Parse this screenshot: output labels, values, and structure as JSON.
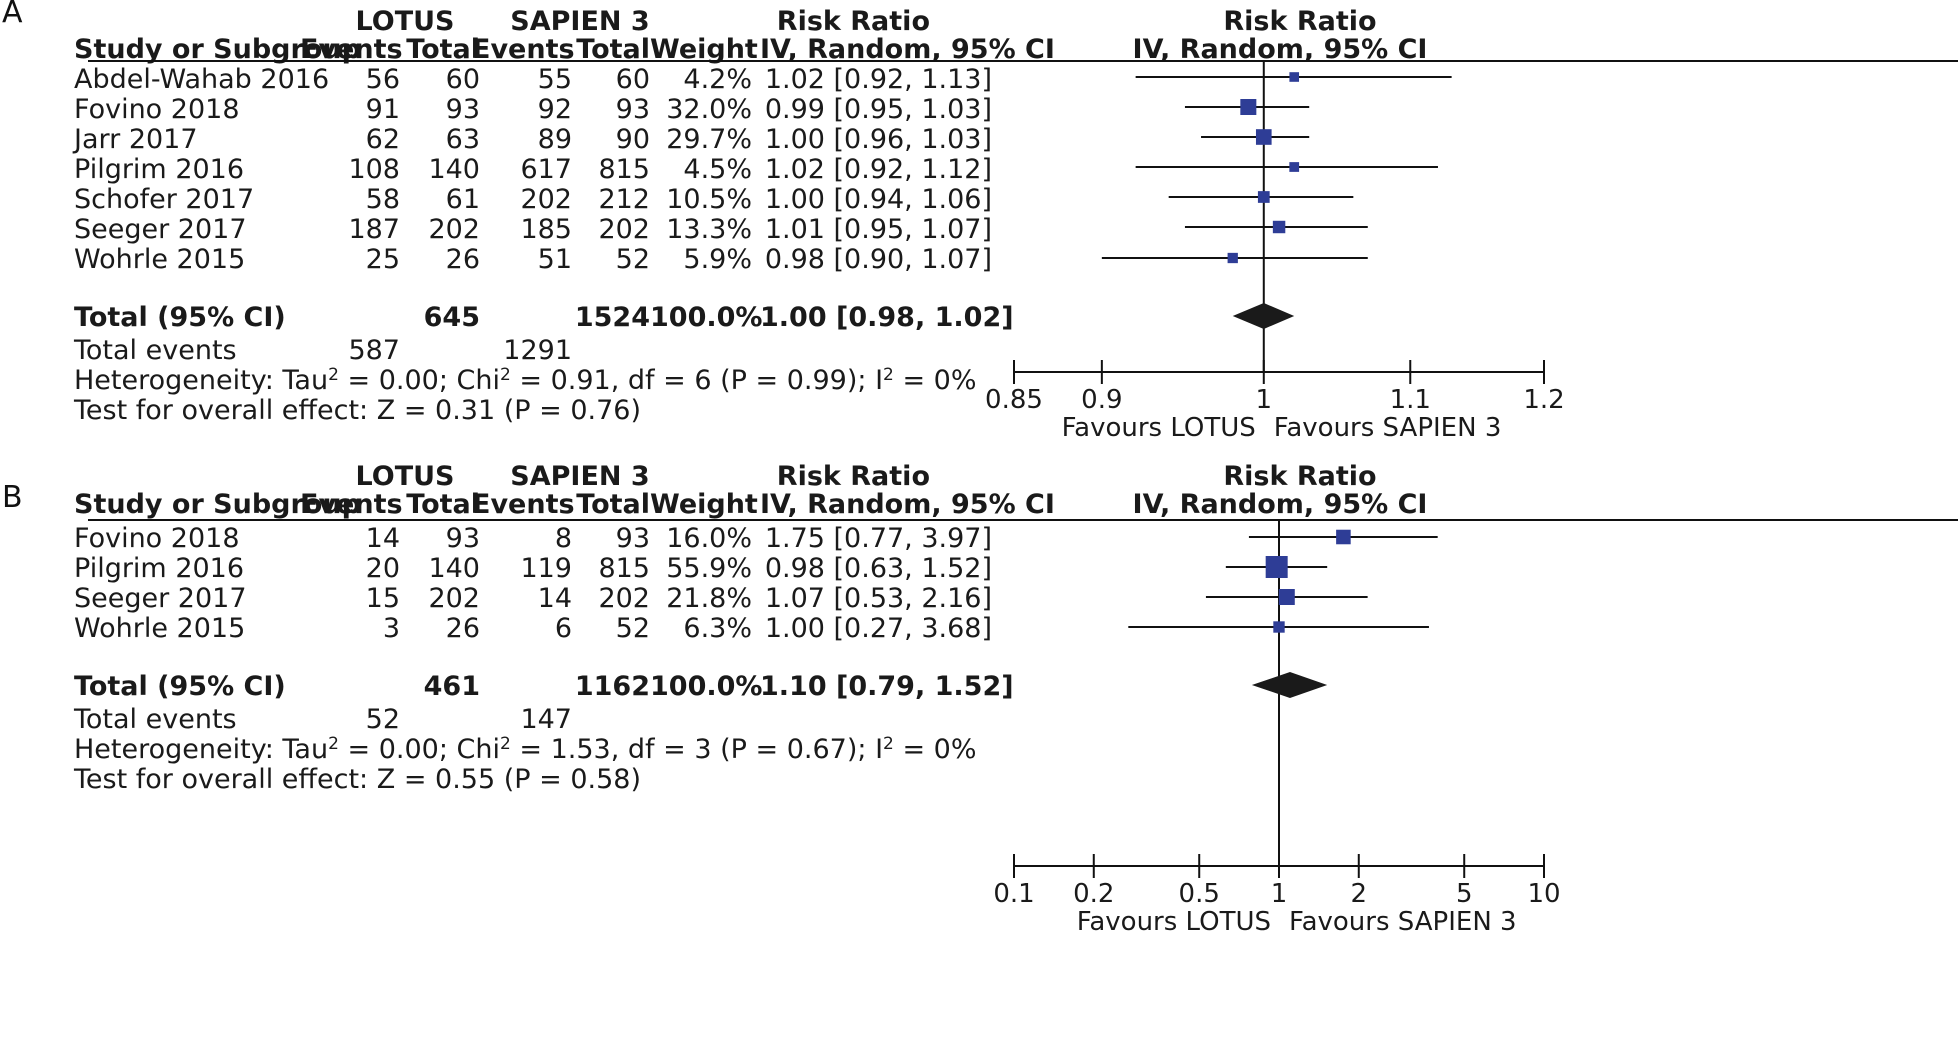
{
  "chart_data": [
    {
      "type": "forest",
      "panel_label": "A",
      "group_headers": {
        "experimental": "LOTUS",
        "control": "SAPIEN 3"
      },
      "columns": {
        "study": "Study or Subgroup",
        "events": "Events",
        "total": "Total",
        "weight": "Weight",
        "effect_title": "Risk Ratio",
        "effect_method": "IV, Random, 95% CI"
      },
      "plot_header": {
        "title": "Risk Ratio",
        "method": "IV, Random, 95% CI"
      },
      "studies": [
        {
          "name": "Abdel-Wahab 2016",
          "e_events": "56",
          "e_total": "60",
          "c_events": "55",
          "c_total": "60",
          "weight": "4.2%",
          "rr_text": "1.02 [0.92, 1.13]",
          "rr": 1.02,
          "lo": 0.92,
          "hi": 1.13,
          "w": 4.2
        },
        {
          "name": "Fovino 2018",
          "e_events": "91",
          "e_total": "93",
          "c_events": "92",
          "c_total": "93",
          "weight": "32.0%",
          "rr_text": "0.99 [0.95, 1.03]",
          "rr": 0.99,
          "lo": 0.95,
          "hi": 1.03,
          "w": 32.0
        },
        {
          "name": "Jarr 2017",
          "e_events": "62",
          "e_total": "63",
          "c_events": "89",
          "c_total": "90",
          "weight": "29.7%",
          "rr_text": "1.00 [0.96, 1.03]",
          "rr": 1.0,
          "lo": 0.96,
          "hi": 1.03,
          "w": 29.7
        },
        {
          "name": "Pilgrim 2016",
          "e_events": "108",
          "e_total": "140",
          "c_events": "617",
          "c_total": "815",
          "weight": "4.5%",
          "rr_text": "1.02 [0.92, 1.12]",
          "rr": 1.02,
          "lo": 0.92,
          "hi": 1.12,
          "w": 4.5
        },
        {
          "name": "Schofer 2017",
          "e_events": "58",
          "e_total": "61",
          "c_events": "202",
          "c_total": "212",
          "weight": "10.5%",
          "rr_text": "1.00 [0.94, 1.06]",
          "rr": 1.0,
          "lo": 0.94,
          "hi": 1.06,
          "w": 10.5
        },
        {
          "name": "Seeger 2017",
          "e_events": "187",
          "e_total": "202",
          "c_events": "185",
          "c_total": "202",
          "weight": "13.3%",
          "rr_text": "1.01 [0.95, 1.07]",
          "rr": 1.01,
          "lo": 0.95,
          "hi": 1.07,
          "w": 13.3
        },
        {
          "name": "Wohrle 2015",
          "e_events": "25",
          "e_total": "26",
          "c_events": "51",
          "c_total": "52",
          "weight": "5.9%",
          "rr_text": "0.98 [0.90, 1.07]",
          "rr": 0.98,
          "lo": 0.9,
          "hi": 1.07,
          "w": 5.9
        }
      ],
      "total": {
        "label": "Total (95% CI)",
        "e_total": "645",
        "c_total": "1524",
        "weight": "100.0%",
        "rr_text": "1.00 [0.98, 1.02]",
        "rr": 1.0,
        "lo": 0.98,
        "hi": 1.02
      },
      "total_events": {
        "label": "Total events",
        "e": "587",
        "c": "1291"
      },
      "heterogeneity": {
        "label": "Heterogeneity: Tau",
        "tau2": "0.00",
        "chi_label": "Chi",
        "chi2": "0.91",
        "df": "6",
        "p": "0.99",
        "i_label": "I",
        "i2": "0%"
      },
      "overall_effect": "Test for overall effect: Z = 0.31 (P = 0.76)",
      "axis": {
        "scale": "log",
        "xlim": [
          0.85,
          1.2
        ],
        "ticks": [
          0.85,
          0.9,
          1,
          1.1,
          1.2
        ],
        "tick_labels": [
          "0.85",
          "0.9",
          "1",
          "1.1",
          "1.2"
        ],
        "null_value": 1
      },
      "favours_left": "Favours LOTUS",
      "favours_right": "Favours SAPIEN 3"
    },
    {
      "type": "forest",
      "panel_label": "B",
      "group_headers": {
        "experimental": "LOTUS",
        "control": "SAPIEN 3"
      },
      "columns": {
        "study": "Study or Subgroup",
        "events": "Events",
        "total": "Total",
        "weight": "Weight",
        "effect_title": "Risk Ratio",
        "effect_method": "IV, Random, 95% CI"
      },
      "plot_header": {
        "title": "Risk Ratio",
        "method": "IV, Random, 95% CI"
      },
      "studies": [
        {
          "name": "Fovino 2018",
          "e_events": "14",
          "e_total": "93",
          "c_events": "8",
          "c_total": "93",
          "weight": "16.0%",
          "rr_text": "1.75 [0.77, 3.97]",
          "rr": 1.75,
          "lo": 0.77,
          "hi": 3.97,
          "w": 16.0
        },
        {
          "name": "Pilgrim 2016",
          "e_events": "20",
          "e_total": "140",
          "c_events": "119",
          "c_total": "815",
          "weight": "55.9%",
          "rr_text": "0.98 [0.63, 1.52]",
          "rr": 0.98,
          "lo": 0.63,
          "hi": 1.52,
          "w": 55.9
        },
        {
          "name": "Seeger 2017",
          "e_events": "15",
          "e_total": "202",
          "c_events": "14",
          "c_total": "202",
          "weight": "21.8%",
          "rr_text": "1.07 [0.53, 2.16]",
          "rr": 1.07,
          "lo": 0.53,
          "hi": 2.16,
          "w": 21.8
        },
        {
          "name": "Wohrle 2015",
          "e_events": "3",
          "e_total": "26",
          "c_events": "6",
          "c_total": "52",
          "weight": "6.3%",
          "rr_text": "1.00 [0.27, 3.68]",
          "rr": 1.0,
          "lo": 0.27,
          "hi": 3.68,
          "w": 6.3
        }
      ],
      "total": {
        "label": "Total (95% CI)",
        "e_total": "461",
        "c_total": "1162",
        "weight": "100.0%",
        "rr_text": "1.10 [0.79, 1.52]",
        "rr": 1.1,
        "lo": 0.79,
        "hi": 1.52
      },
      "total_events": {
        "label": "Total events",
        "e": "52",
        "c": "147"
      },
      "heterogeneity": {
        "label": "Heterogeneity: Tau",
        "tau2": "0.00",
        "chi_label": "Chi",
        "chi2": "1.53",
        "df": "3",
        "p": "0.67",
        "i_label": "I",
        "i2": "0%"
      },
      "overall_effect": "Test for overall effect: Z = 0.55 (P = 0.58)",
      "axis": {
        "scale": "log",
        "xlim": [
          0.1,
          10
        ],
        "ticks": [
          0.1,
          0.2,
          0.5,
          1,
          2,
          5,
          10
        ],
        "tick_labels": [
          "0.1",
          "0.2",
          "0.5",
          "1",
          "2",
          "5",
          "10"
        ],
        "null_value": 1
      },
      "favours_left": "Favours LOTUS",
      "favours_right": "Favours SAPIEN 3"
    }
  ]
}
